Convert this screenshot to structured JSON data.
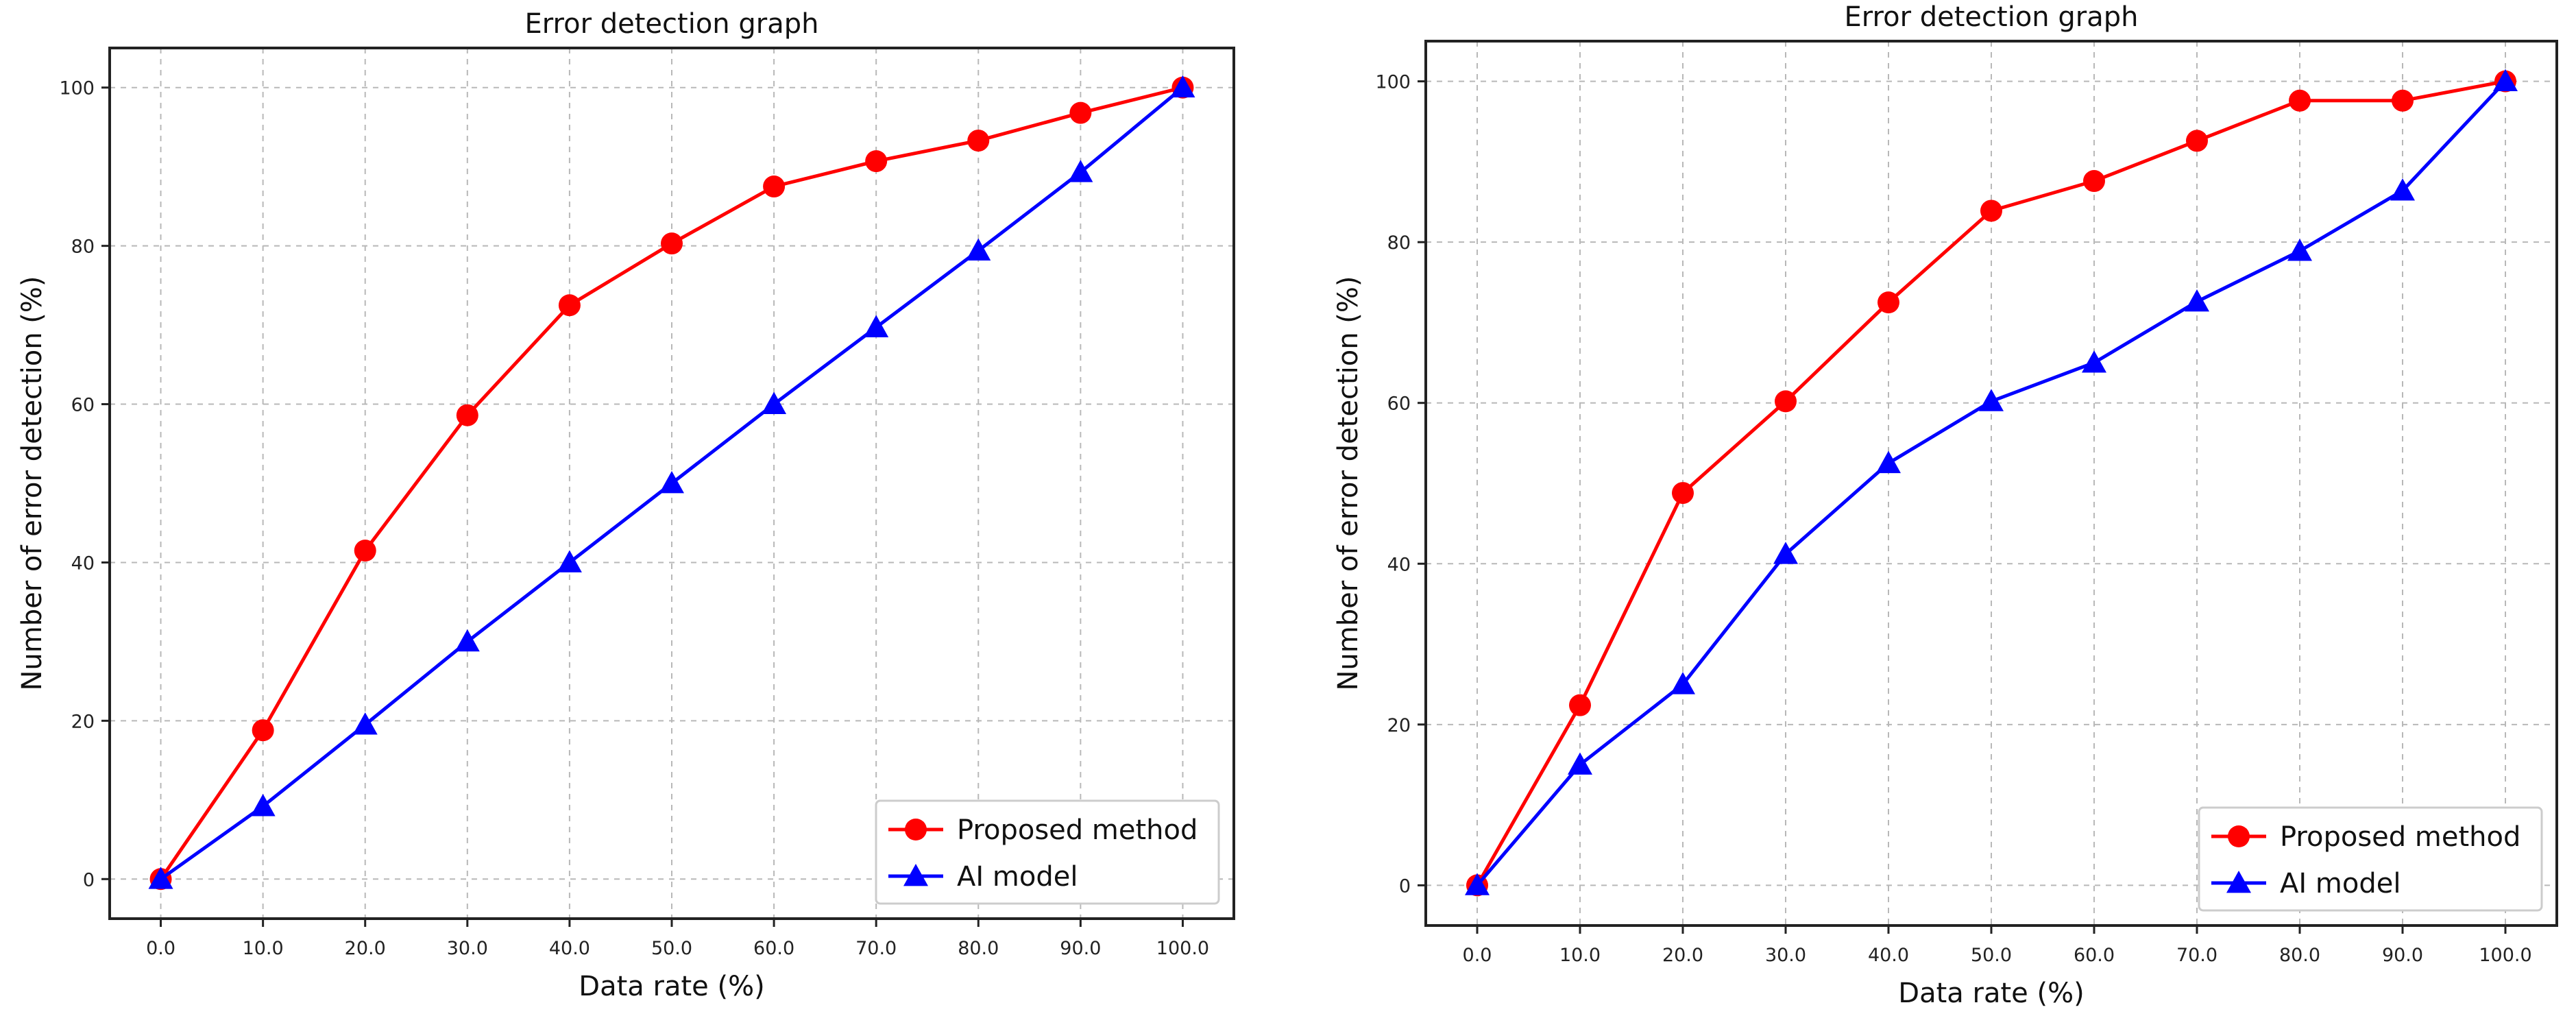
{
  "chart_data": [
    {
      "type": "line",
      "title": "Error detection graph",
      "xlabel": "Data rate (%)",
      "ylabel": "Number of error detection (%)",
      "x": [
        0,
        10,
        20,
        30,
        40,
        50,
        60,
        70,
        80,
        90,
        100
      ],
      "x_tick_labels": [
        "0.0",
        "10.0",
        "20.0",
        "30.0",
        "40.0",
        "50.0",
        "60.0",
        "70.0",
        "80.0",
        "90.0",
        "100.0"
      ],
      "y_ticks": [
        0,
        20,
        40,
        60,
        80,
        100
      ],
      "y_tick_labels": [
        "0",
        "20",
        "40",
        "60",
        "80",
        "100"
      ],
      "xlim": [
        -5,
        105
      ],
      "ylim": [
        -5,
        105
      ],
      "grid": true,
      "legend_position": "lower-right",
      "series": [
        {
          "name": "Proposed method",
          "color": "#ff0000",
          "marker": "circle",
          "values": [
            0,
            18.8,
            41.5,
            58.6,
            72.5,
            80.3,
            87.5,
            90.7,
            93.3,
            96.8,
            100
          ]
        },
        {
          "name": "AI model",
          "color": "#0000ff",
          "marker": "triangle",
          "values": [
            0,
            9.2,
            19.5,
            30,
            40,
            50,
            60,
            69.7,
            79.4,
            89.3,
            100
          ]
        }
      ]
    },
    {
      "type": "line",
      "title": "Error detection graph",
      "xlabel": "Data rate (%)",
      "ylabel": "Number of error detection (%)",
      "x": [
        0,
        10,
        20,
        30,
        40,
        50,
        60,
        70,
        80,
        90,
        100
      ],
      "x_tick_labels": [
        "0.0",
        "10.0",
        "20.0",
        "30.0",
        "40.0",
        "50.0",
        "60.0",
        "70.0",
        "80.0",
        "90.0",
        "100.0"
      ],
      "y_ticks": [
        0,
        20,
        40,
        60,
        80,
        100
      ],
      "y_tick_labels": [
        "0",
        "20",
        "40",
        "60",
        "80",
        "100"
      ],
      "xlim": [
        -5,
        105
      ],
      "ylim": [
        -5,
        105
      ],
      "grid": true,
      "legend_position": "lower-right",
      "series": [
        {
          "name": "Proposed method",
          "color": "#ff0000",
          "marker": "circle",
          "values": [
            0,
            22.4,
            48.8,
            60.2,
            72.5,
            83.9,
            87.6,
            92.6,
            97.6,
            97.6,
            100
          ]
        },
        {
          "name": "AI model",
          "color": "#0000ff",
          "marker": "triangle",
          "values": [
            0,
            15,
            25,
            41.2,
            52.5,
            60.2,
            65,
            72.6,
            78.9,
            86.4,
            100
          ]
        }
      ]
    }
  ]
}
